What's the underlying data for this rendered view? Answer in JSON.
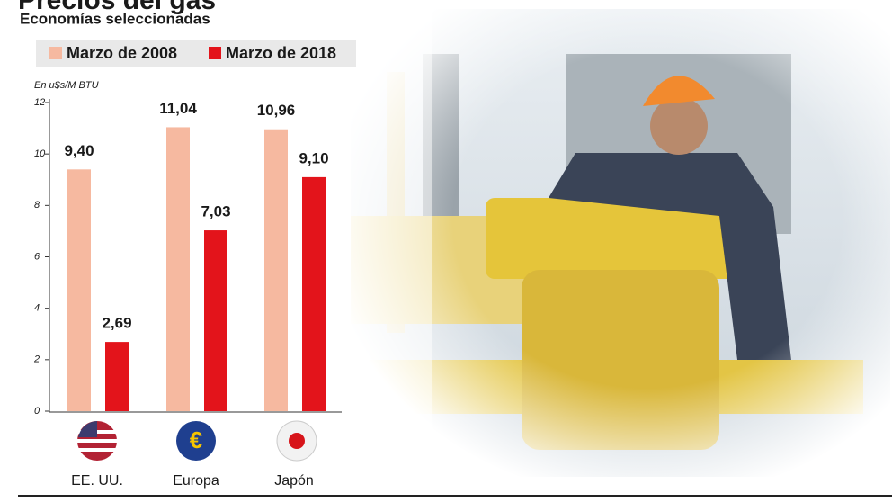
{
  "chart_data": {
    "type": "bar",
    "title": "Precios del gas",
    "subtitle": "Economías seleccionadas",
    "y_label": "En u$s/M BTU",
    "categories": [
      "EE. UU.",
      "Europa",
      "Japón"
    ],
    "series": [
      {
        "name": "Marzo de 2008",
        "color": "#f6b9a0",
        "values": [
          9.4,
          11.04,
          10.96
        ],
        "value_labels": [
          "9,40",
          "11,04",
          "10,96"
        ]
      },
      {
        "name": "Marzo de 2018",
        "color": "#e3141b",
        "values": [
          2.69,
          7.03,
          9.1
        ],
        "value_labels": [
          "2,69",
          "7,03",
          "9,10"
        ]
      }
    ],
    "ylim": [
      0,
      12
    ],
    "yticks": [
      0,
      2,
      4,
      6,
      8,
      10,
      12
    ]
  }
}
